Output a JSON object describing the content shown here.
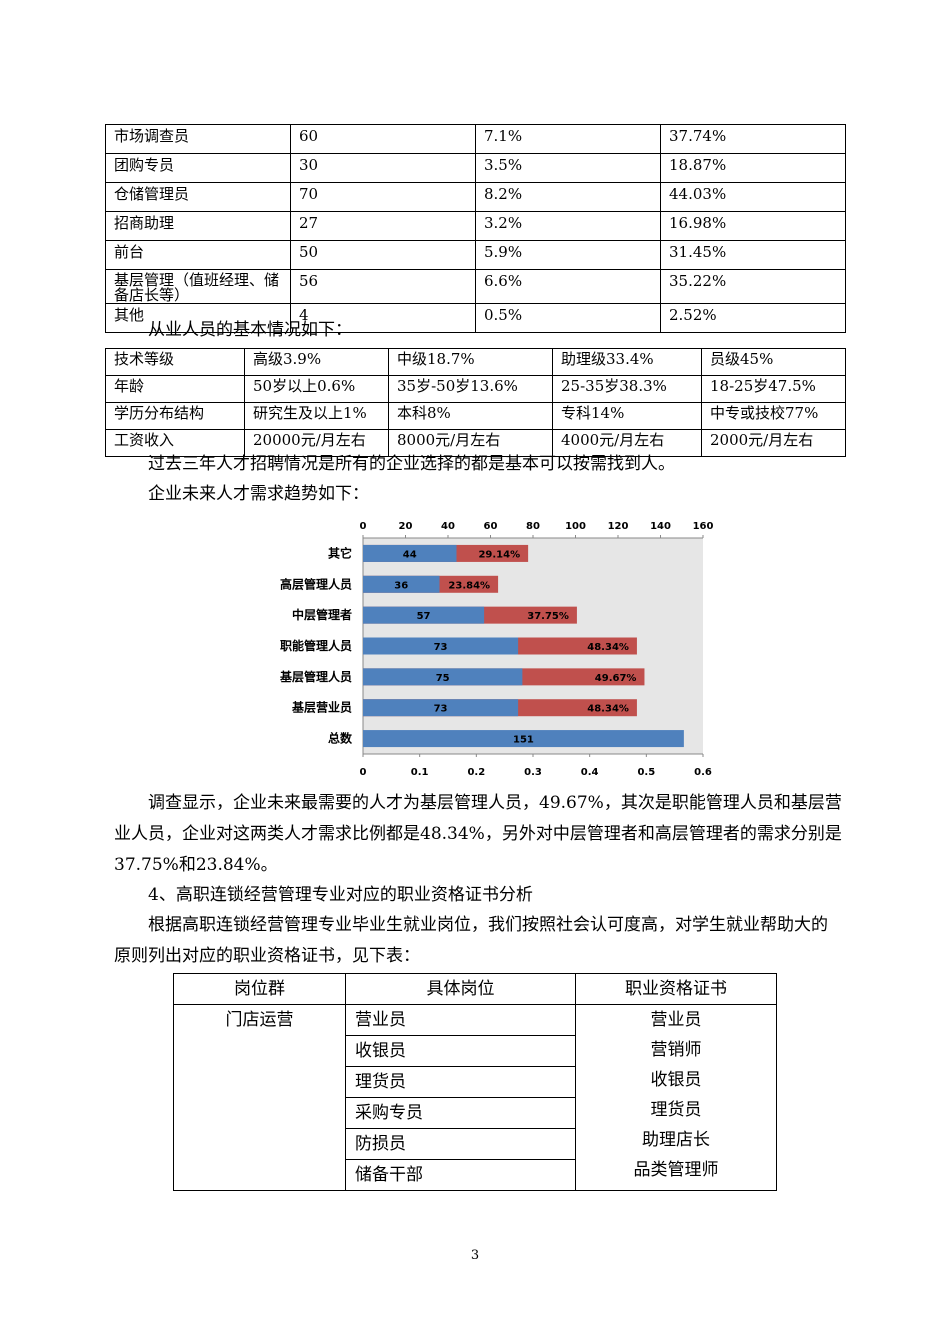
{
  "table1": {
    "rows": [
      [
        "市场调查员",
        "60",
        "7.1%",
        "37.74%"
      ],
      [
        "团购专员",
        "30",
        "3.5%",
        "18.87%"
      ],
      [
        "仓储管理员",
        "70",
        "8.2%",
        "44.03%"
      ],
      [
        "招商助理",
        "27",
        "3.2%",
        "16.98%"
      ],
      [
        "前台",
        "50",
        "5.9%",
        "31.45%"
      ],
      [
        "基层管理（值班经理、储备店长等）",
        "56",
        "6.6%",
        "35.22%"
      ],
      [
        "其他",
        "4",
        "0.5%",
        "2.52%"
      ]
    ]
  },
  "intro2": "从业人员的基本情况如下：",
  "table2": {
    "rows": [
      [
        "技术等级",
        "高级3.9%",
        "中级18.7%",
        "助理级33.4%",
        "员级45%"
      ],
      [
        "年龄",
        "50岁以上0.6%",
        "35岁-50岁13.6%",
        "25-35岁38.3%",
        "18-25岁47.5%"
      ],
      [
        "学历分布结构",
        "研究生及以上1%",
        "本科8%",
        "专科14%",
        "中专或技校77%"
      ],
      [
        "工资收入",
        "20000元/月左右",
        "8000元/月左右",
        "4000元/月左右",
        "2000元/月左右"
      ]
    ]
  },
  "para_recruit": "过去三年人才招聘情况是所有的企业选择的都是基本可以按需找到人。",
  "para_trend": "企业未来人才需求趋势如下：",
  "chart_data": {
    "type": "bar",
    "orientation": "horizontal",
    "categories": [
      "其它",
      "高层管理人员",
      "中层管理者",
      "职能管理人员",
      "基层管理人员",
      "基层营业员",
      "总数"
    ],
    "series": [
      {
        "values": [
          44,
          36,
          57,
          73,
          75,
          73,
          151
        ],
        "labels": [
          "44",
          "36",
          "57",
          "73",
          "75",
          "73",
          "151"
        ],
        "axis": "top",
        "color": "#4f81bd"
      },
      {
        "values": [
          0.2914,
          0.2384,
          0.3775,
          0.4834,
          0.4967,
          0.4834,
          null
        ],
        "labels": [
          "29.14%",
          "23.84%",
          "37.75%",
          "48.34%",
          "49.67%",
          "48.34%",
          ""
        ],
        "axis": "bottom",
        "color": "#c0504d"
      }
    ],
    "top_axis": {
      "range": [
        0,
        160
      ],
      "ticks": [
        "0",
        "20",
        "40",
        "60",
        "80",
        "100",
        "120",
        "140",
        "160"
      ]
    },
    "bottom_axis": {
      "range": [
        0,
        0.6
      ],
      "ticks": [
        "0",
        "0.1",
        "0.2",
        "0.3",
        "0.4",
        "0.5",
        "0.6"
      ]
    },
    "plot_background": "#e6e6e6",
    "grid": true
  },
  "para_analysis": "调查显示，企业未来最需要的人才为基层管理人员，49.67%，其次是职能管理人员和基层营业人员，企业对这两类人才需求比例都是48.34%，另外对中层管理者和高层管理者的需求分别是37.75%和23.84%。",
  "heading4": "4、高职连锁经营管理专业对应的职业资格证书分析",
  "para_cert": "根据高职连锁经营管理专业毕业生就业岗位，我们按照社会认可度高，对学生就业帮助大的原则列出对应的职业资格证书，见下表：",
  "table3": {
    "headers": [
      "岗位群",
      "具体岗位",
      "职业资格证书"
    ],
    "group": "门店运营",
    "positions": [
      "营业员",
      "收银员",
      "理货员",
      "采购专员",
      "防损员",
      "储备干部"
    ],
    "certificates": [
      "营业员",
      "营销师",
      "收银员",
      "理货员",
      "助理店长",
      "品类管理师"
    ]
  },
  "page_number": "3"
}
